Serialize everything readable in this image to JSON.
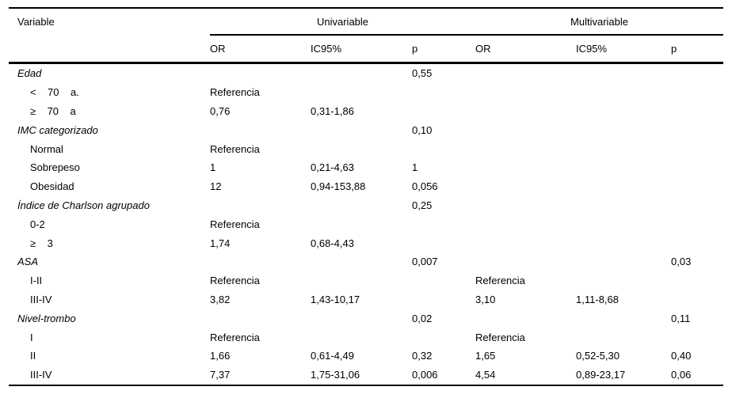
{
  "colors": {
    "background": "#ffffff",
    "rule": "#000000",
    "text": "#000000"
  },
  "table": {
    "columns": {
      "variable": "Variable",
      "group_univariable": "Univariable",
      "group_multivariable": "Multivariable",
      "sub_or_uni": "OR",
      "sub_ic_uni": "IC95%",
      "sub_p_uni": "p",
      "sub_or_multi": "OR",
      "sub_ic_multi": "IC95%",
      "sub_p_multi": "p"
    },
    "rows": [
      {
        "label": "Edad",
        "group": true,
        "cells": [
          "",
          "",
          "0,55",
          "",
          "",
          ""
        ]
      },
      {
        "label": "<    70    a.",
        "group": false,
        "cells": [
          "Referencia",
          "",
          "",
          "",
          "",
          ""
        ]
      },
      {
        "label": "≥    70    a",
        "group": false,
        "cells": [
          "0,76",
          "0,31-1,86",
          "",
          "",
          "",
          ""
        ]
      },
      {
        "label": "IMC categorizado",
        "group": true,
        "cells": [
          "",
          "",
          "0,10",
          "",
          "",
          ""
        ]
      },
      {
        "label": "Normal",
        "group": false,
        "cells": [
          "Referencia",
          "",
          "",
          "",
          "",
          ""
        ]
      },
      {
        "label": "Sobrepeso",
        "group": false,
        "cells": [
          "1",
          "0,21-4,63",
          "1",
          "",
          "",
          ""
        ]
      },
      {
        "label": "Obesidad",
        "group": false,
        "cells": [
          "12",
          "0,94-153,88",
          "0,056",
          "",
          "",
          ""
        ]
      },
      {
        "label": "Índice de Charlson agrupado",
        "group": true,
        "cells": [
          "",
          "",
          "0,25",
          "",
          "",
          ""
        ]
      },
      {
        "label": "0-2",
        "group": false,
        "cells": [
          "Referencia",
          "",
          "",
          "",
          "",
          ""
        ]
      },
      {
        "label": "≥    3",
        "group": false,
        "cells": [
          "1,74",
          "0,68-4,43",
          "",
          "",
          "",
          ""
        ]
      },
      {
        "label": "ASA",
        "group": true,
        "cells": [
          "",
          "",
          "0,007",
          "",
          "",
          "0,03"
        ]
      },
      {
        "label": "I-II",
        "group": false,
        "cells": [
          "Referencia",
          "",
          "",
          "Referencia",
          "",
          ""
        ]
      },
      {
        "label": "III-IV",
        "group": false,
        "cells": [
          "3,82",
          "1,43-10,17",
          "",
          "3,10",
          "1,11-8,68",
          ""
        ]
      },
      {
        "label": "Nivel-trombo",
        "group": true,
        "cells": [
          "",
          "",
          "0,02",
          "",
          "",
          "0,11"
        ]
      },
      {
        "label": "I",
        "group": false,
        "cells": [
          "Referencia",
          "",
          "",
          "Referencia",
          "",
          ""
        ]
      },
      {
        "label": "II",
        "group": false,
        "cells": [
          "1,66",
          "0,61-4,49",
          "0,32",
          "1,65",
          "0,52-5,30",
          "0,40"
        ]
      },
      {
        "label": "III-IV",
        "group": false,
        "cells": [
          "7,37",
          "1,75-31,06",
          "0,006",
          "4,54",
          "0,89-23,17",
          "0,06"
        ]
      }
    ]
  }
}
